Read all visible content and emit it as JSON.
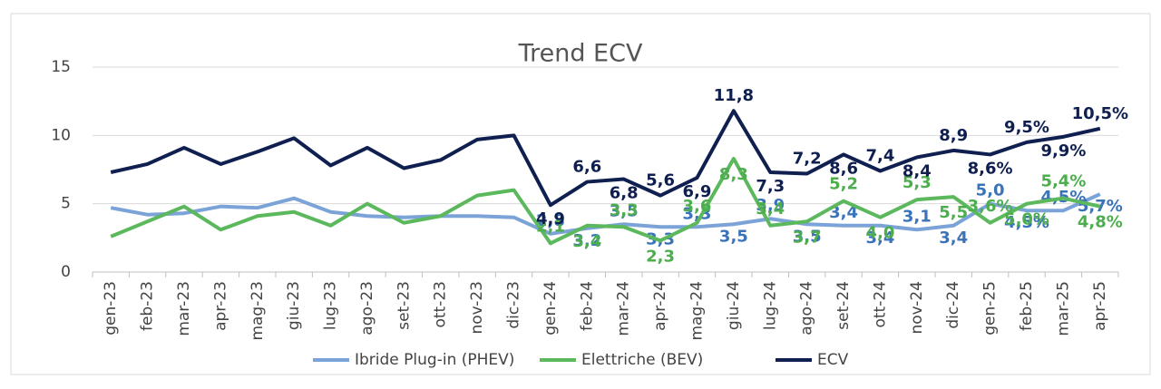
{
  "chart_data": {
    "type": "line",
    "title": "Trend ECV",
    "categories": [
      "gen-23",
      "feb-23",
      "mar-23",
      "apr-23",
      "mag-23",
      "giu-23",
      "lug-23",
      "ago-23",
      "set-23",
      "ott-23",
      "nov-23",
      "dic-23",
      "gen-24",
      "feb-24",
      "mar-24",
      "apr-24",
      "mag-24",
      "giu-24",
      "lug-24",
      "ago-24",
      "set-24",
      "ott-24",
      "nov-24",
      "dic-24",
      "gen-25",
      "feb-25",
      "mar-25",
      "apr-25"
    ],
    "series": [
      {
        "name": "Ibride Plug-in (PHEV)",
        "color": "#7ba3d8",
        "label_color": "#3b73b9",
        "values": [
          4.7,
          4.2,
          4.3,
          4.8,
          4.7,
          5.4,
          4.4,
          4.1,
          4.0,
          4.1,
          4.1,
          4.0,
          2.8,
          3.2,
          3.5,
          3.3,
          3.3,
          3.5,
          3.9,
          3.5,
          3.4,
          3.4,
          3.1,
          3.4,
          5.0,
          4.5,
          4.5,
          5.7
        ],
        "value_labels": [
          null,
          null,
          null,
          null,
          null,
          null,
          null,
          null,
          null,
          null,
          null,
          null,
          "2,8",
          "3,2",
          "3,5",
          "3,3",
          "3,3",
          "3,5",
          "3,9",
          "3,5",
          "3,4",
          "3,4",
          "3,1",
          "3,4",
          "5,0",
          "4,5%",
          "4,5%",
          "5,7%"
        ]
      },
      {
        "name": "Elettriche (BEV)",
        "color": "#5cb85c",
        "label_color": "#4cae4c",
        "values": [
          2.6,
          3.7,
          4.8,
          3.1,
          4.1,
          4.4,
          3.4,
          5.0,
          3.6,
          4.1,
          5.6,
          6.0,
          2.1,
          3.4,
          3.3,
          2.3,
          3.6,
          8.3,
          3.4,
          3.7,
          5.2,
          4.0,
          5.3,
          5.5,
          3.6,
          5.0,
          5.4,
          4.8
        ],
        "value_labels": [
          null,
          null,
          null,
          null,
          null,
          null,
          null,
          null,
          null,
          null,
          null,
          null,
          "2,1",
          "3,4",
          "3,3",
          "2,3",
          "3,6",
          "8,3",
          "3,4",
          "3,7",
          "5,2",
          "4,0",
          "5,3",
          "5,5",
          "3,6%",
          "5,0%",
          "5,4%",
          "4,8%"
        ]
      },
      {
        "name": "ECV",
        "color": "#0e1f50",
        "label_color": "#0e1f50",
        "values": [
          7.3,
          7.9,
          9.1,
          7.9,
          8.8,
          9.8,
          7.8,
          9.1,
          7.6,
          8.2,
          9.7,
          10.0,
          4.9,
          6.6,
          6.8,
          5.6,
          6.9,
          11.8,
          7.3,
          7.2,
          8.6,
          7.4,
          8.4,
          8.9,
          8.6,
          9.5,
          9.9,
          10.5
        ],
        "value_labels": [
          null,
          null,
          null,
          null,
          null,
          null,
          null,
          null,
          null,
          null,
          null,
          null,
          "4,9",
          "6,6",
          "6,8",
          "5,6",
          "6,9",
          "11,8",
          "7,3",
          "7,2",
          "8,6",
          "7,4",
          "8,4",
          "8,9",
          "8,6%",
          "9,5%",
          "9,9%",
          "10,5%"
        ]
      }
    ],
    "ylim": [
      0,
      15
    ],
    "yticks": [
      0,
      5,
      10,
      15
    ],
    "grid": true,
    "legend": "bottom"
  }
}
